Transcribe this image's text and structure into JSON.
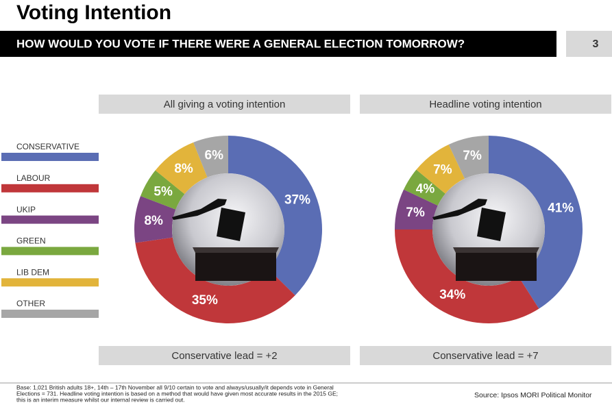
{
  "header": {
    "title": "Voting Intention",
    "subtitle": "HOW WOULD YOU VOTE IF THERE WERE A GENERAL ELECTION TOMORROW?",
    "page": "3"
  },
  "legend": {
    "categories": [
      "CONSERVATIVE",
      "LABOUR",
      "UKIP",
      "GREEN",
      "LIB DEM",
      "OTHER"
    ],
    "colors": [
      "#5a6db4",
      "#c0373a",
      "#7b4583",
      "#7aa83f",
      "#e2b43b",
      "#a6a6a6"
    ]
  },
  "chart_data": [
    {
      "type": "pie",
      "title": "All giving a voting intention",
      "values": [
        37,
        35,
        8,
        5,
        8,
        6
      ],
      "value_labels": [
        "37%",
        "35%",
        "8%",
        "5%",
        "8%",
        "6%"
      ],
      "annotation": "Conservative lead = +2"
    },
    {
      "type": "pie",
      "title": "Headline voting intention",
      "values": [
        41,
        34,
        7,
        4,
        7,
        7
      ],
      "value_labels": [
        "41%",
        "34%",
        "7%",
        "4%",
        "7%",
        "7%"
      ],
      "annotation": "Conservative lead = +7"
    }
  ],
  "footer": {
    "note": [
      "Base: 1,021 British adults 18+, 14th – 17th November all 9/10 certain to vote and always/usually/it depends vote in General",
      "Elections = 731. Headline voting intention is based on a method that would have given most accurate results in the 2015 GE;",
      "this is an interim measure whilst our internal review is carried out."
    ],
    "source": "Source: Ipsos MORI Political Monitor"
  }
}
